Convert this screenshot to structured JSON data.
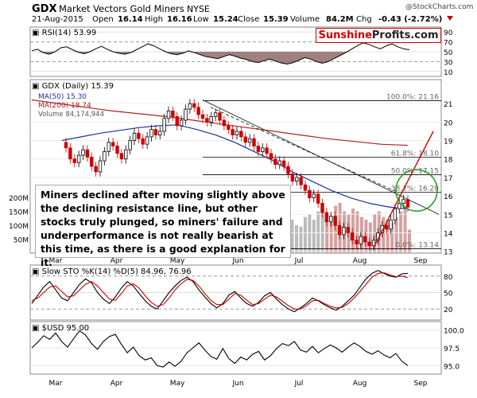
{
  "header": {
    "ticker": "GDX",
    "name": "Market Vectors Gold Miners",
    "exchange": "NYSE",
    "date": "21-Aug-2015",
    "open_label": "Open",
    "open": "16.14",
    "high_label": "High",
    "high": "16.16",
    "low_label": "Low",
    "low": "15.24",
    "close_label": "Close",
    "close": "15.39",
    "volume_label": "Volume",
    "volume": "84.2M",
    "chg_label": "Chg",
    "chg": "-0.43 (-2.72%)",
    "copyright": "@StockCharts.com"
  },
  "branding": {
    "part1": "Sunshine",
    "part2": "Profits.com"
  },
  "annotation": "Miners declined after moving slightly above the declining resistance line, but other stocks truly plunged, so miners' failure and underperformance is not really bearish at this time, as there is a good explanation for it.",
  "colors": {
    "up": "#000000",
    "down": "#cc0000",
    "ma50": "#1f2fa0",
    "ma200": "#b02020",
    "accent": "#cc0000",
    "circle": "#2a9d2a",
    "volume": "#bbbbbb",
    "rsi_fill": "#8a6060"
  },
  "chart_data": [
    {
      "id": "rsi",
      "type": "line",
      "title": "RSI(14) 53.99",
      "yticks": [
        10,
        30,
        50,
        70,
        90
      ],
      "ylim": [
        0,
        100
      ],
      "values": [
        52,
        55,
        48,
        45,
        50,
        58,
        60,
        54,
        49,
        46,
        50,
        56,
        61,
        55,
        50,
        47,
        45,
        48,
        54,
        60,
        66,
        62,
        56,
        50,
        46,
        44,
        47,
        52,
        48,
        44,
        40,
        38,
        36,
        40,
        44,
        41,
        37,
        34,
        30,
        28,
        32,
        35,
        31,
        27,
        25,
        28,
        33,
        38,
        35,
        30,
        27,
        30,
        36,
        42,
        48,
        55,
        62,
        68,
        65,
        60,
        56,
        62,
        66,
        60,
        56,
        54
      ]
    },
    {
      "id": "price",
      "type": "candlestick",
      "title": "GDX (Daily) 15.39",
      "x_labels": [
        "Mar",
        "Apr",
        "May",
        "Jun",
        "Jul",
        "Aug",
        "Sep"
      ],
      "yticks": [
        13,
        14,
        15,
        16,
        17,
        18,
        19,
        20,
        21
      ],
      "ylim": [
        12.9,
        22.3
      ],
      "legend": [
        "MA(50) 15.30",
        "MA(200) 18.74",
        "Volume 84,174,944"
      ],
      "volume_ticks": [
        "50M",
        "100M",
        "150M",
        "200M"
      ],
      "fib_levels": [
        {
          "label": "100.0%: 21.16",
          "value": 21.16
        },
        {
          "label": "61.8%: 18.10",
          "value": 18.1
        },
        {
          "label": "50.0%: 17.15",
          "value": 17.15
        },
        {
          "label": "38.2%: 16.20",
          "value": 16.2
        },
        {
          "label": "0.0%: 13.14",
          "value": 13.14
        }
      ],
      "closes": [
        18.6,
        18.0,
        17.8,
        18.2,
        18.5,
        18.1,
        17.6,
        17.3,
        17.9,
        18.4,
        18.9,
        18.7,
        18.3,
        18.0,
        18.5,
        19.0,
        19.4,
        19.1,
        18.8,
        19.2,
        19.6,
        19.3,
        19.5,
        20.2,
        20.6,
        20.3,
        19.8,
        20.1,
        20.7,
        21.0,
        20.8,
        20.4,
        20.2,
        20.0,
        20.3,
        20.5,
        20.1,
        19.8,
        19.6,
        19.3,
        19.5,
        19.2,
        18.9,
        19.1,
        18.7,
        18.4,
        18.6,
        18.3,
        18.0,
        17.7,
        17.9,
        17.6,
        17.2,
        16.8,
        17.0,
        16.6,
        16.3,
        15.9,
        16.1,
        15.6,
        15.1,
        14.6,
        14.9,
        14.4,
        13.9,
        14.3,
        14.0,
        13.6,
        13.4,
        13.8,
        13.5,
        13.3,
        13.6,
        14.0,
        14.4,
        14.2,
        14.7,
        15.3,
        15.6,
        15.8,
        15.39
      ],
      "ma50": [
        19.0,
        19.2,
        19.4,
        19.55,
        19.7,
        19.8,
        19.85,
        19.6,
        19.3,
        18.9,
        18.4,
        17.9,
        17.3,
        16.8,
        16.3,
        15.9,
        15.6,
        15.4,
        15.3
      ],
      "ma200": [
        21.2,
        21.0,
        20.8,
        20.6,
        20.45,
        20.3,
        20.1,
        19.9,
        19.7,
        19.5,
        19.3,
        19.1,
        18.95,
        18.8,
        18.74
      ],
      "volumes": [
        90,
        70,
        60,
        80,
        75,
        65,
        70,
        85,
        60,
        55,
        70,
        80,
        65,
        60,
        75,
        70,
        60,
        55,
        65,
        70,
        80,
        60,
        55,
        70,
        90,
        75,
        60,
        65,
        70,
        60,
        55,
        50,
        60,
        70,
        65,
        55,
        60,
        70,
        65,
        75,
        80,
        60,
        70,
        75,
        85,
        90,
        80,
        70,
        95,
        100,
        85,
        90,
        110,
        120,
        100,
        95,
        130,
        140,
        120,
        150,
        160,
        140,
        130,
        170,
        180,
        150,
        140,
        160,
        150,
        130,
        120,
        110,
        140,
        150,
        130,
        120,
        110,
        130,
        150,
        170,
        84
      ]
    },
    {
      "id": "sto",
      "type": "line",
      "title": "Slow STO %K(14) %D(5) 84.96, 76.96",
      "yticks": [
        20,
        50,
        80
      ],
      "ylim": [
        0,
        100
      ],
      "series": [
        {
          "name": "%K(14)",
          "values": [
            30,
            45,
            60,
            70,
            55,
            40,
            35,
            50,
            65,
            75,
            68,
            50,
            38,
            30,
            42,
            58,
            70,
            62,
            48,
            35,
            25,
            20,
            35,
            50,
            62,
            72,
            78,
            70,
            55,
            42,
            30,
            22,
            30,
            45,
            52,
            40,
            30,
            25,
            32,
            44,
            50,
            38,
            28,
            20,
            15,
            22,
            30,
            40,
            35,
            28,
            22,
            18,
            25,
            35,
            45,
            60,
            75,
            85,
            90,
            85,
            80,
            78,
            84,
            85
          ]
        },
        {
          "name": "%D(5)",
          "values": [
            35,
            40,
            50,
            60,
            62,
            52,
            42,
            44,
            55,
            65,
            70,
            62,
            50,
            38,
            36,
            48,
            62,
            66,
            58,
            44,
            32,
            25,
            28,
            40,
            55,
            66,
            74,
            72,
            62,
            48,
            36,
            28,
            28,
            38,
            48,
            45,
            36,
            28,
            30,
            38,
            45,
            42,
            34,
            26,
            20,
            20,
            26,
            35,
            36,
            30,
            25,
            22,
            23,
            30,
            40,
            52,
            65,
            78,
            85,
            86,
            82,
            79,
            80,
            77
          ]
        }
      ]
    },
    {
      "id": "usd",
      "type": "line",
      "title": "$USD 95.00",
      "yticks": [
        95.0,
        97.5,
        100.0
      ],
      "ylim": [
        93.8,
        101.2
      ],
      "x_labels": [
        "Mar",
        "Apr",
        "May",
        "Jun",
        "Jul",
        "Aug",
        "Sep"
      ],
      "values": [
        97.5,
        98.3,
        99.2,
        98.7,
        99.6,
        98.4,
        97.6,
        98.8,
        99.9,
        99.3,
        98.1,
        97.3,
        98.4,
        99.1,
        99.4,
        98.0,
        96.8,
        97.6,
        96.4,
        95.8,
        96.1,
        95.0,
        94.8,
        95.5,
        94.9,
        95.6,
        96.8,
        97.5,
        98.2,
        97.2,
        96.3,
        95.9,
        97.4,
        96.0,
        95.3,
        96.2,
        95.8,
        96.6,
        97.0,
        95.8,
        96.4,
        97.4,
        98.1,
        97.8,
        98.4,
        97.2,
        96.9,
        97.7,
        96.8,
        97.4,
        97.9,
        97.5,
        96.9,
        97.6,
        98.2,
        97.7,
        97.0,
        96.6,
        97.1,
        96.5,
        96.1,
        96.7,
        95.6,
        95.0
      ]
    }
  ]
}
